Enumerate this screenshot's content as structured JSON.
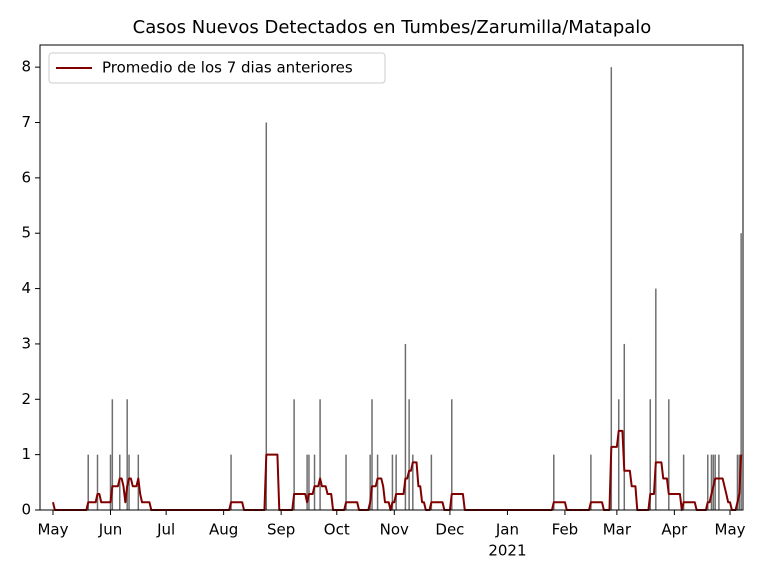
{
  "chart_data": {
    "type": "bar",
    "title": "Casos Nuevos Detectados en Tumbes/Zarumilla/Matapalo",
    "xlim": [
      -7,
      372
    ],
    "ylim": [
      0,
      8.4
    ],
    "yticks": [
      0,
      1,
      2,
      3,
      4,
      5,
      6,
      7,
      8
    ],
    "xticks": [
      {
        "value": 0,
        "label": "May"
      },
      {
        "value": 31,
        "label": "Jun"
      },
      {
        "value": 61,
        "label": "Jul"
      },
      {
        "value": 92,
        "label": "Aug"
      },
      {
        "value": 123,
        "label": "Sep"
      },
      {
        "value": 153,
        "label": "Oct"
      },
      {
        "value": 184,
        "label": "Nov"
      },
      {
        "value": 214,
        "label": "Dec"
      },
      {
        "value": 245,
        "label": "Jan"
      },
      {
        "value": 276,
        "label": "Feb"
      },
      {
        "value": 304,
        "label": "Mar"
      },
      {
        "value": 335,
        "label": "Apr"
      },
      {
        "value": 365,
        "label": "May"
      }
    ],
    "x_secondary_labels": [
      {
        "value": 245,
        "label": "2021"
      }
    ],
    "legend": "upper left",
    "series": [
      {
        "type": "bar",
        "color": "#6e6e6e",
        "x": [
          19,
          24,
          31,
          32,
          36,
          40,
          41,
          46,
          96,
          115,
          130,
          137,
          138,
          141,
          144,
          158,
          171,
          172,
          175,
          183,
          185,
          190,
          192,
          194,
          204,
          215,
          270,
          290,
          301,
          305,
          308,
          322,
          325,
          332,
          340,
          353,
          355,
          356,
          357,
          359,
          369,
          370,
          371
        ],
        "values": [
          1,
          1,
          1,
          2,
          1,
          2,
          1,
          1,
          1,
          7,
          2,
          1,
          1,
          1,
          2,
          1,
          1,
          2,
          1,
          1,
          1,
          3,
          2,
          1,
          1,
          2,
          1,
          1,
          8,
          2,
          3,
          2,
          4,
          2,
          1,
          1,
          1,
          1,
          1,
          1,
          1,
          1,
          5
        ]
      },
      {
        "type": "line",
        "name": "Promedio de los 7 dias anteriores",
        "color": "#800000",
        "x": [
          0,
          1,
          18,
          19,
          23,
          24,
          25,
          26,
          31,
          32,
          35,
          36,
          37,
          38,
          39,
          40,
          41,
          42,
          43,
          45,
          46,
          47,
          48,
          52,
          53,
          95,
          96,
          102,
          103,
          114,
          115,
          121,
          122,
          129,
          130,
          136,
          137,
          138,
          140,
          141,
          143,
          144,
          145,
          147,
          148,
          150,
          151,
          157,
          158,
          164,
          165,
          170,
          171,
          172,
          174,
          175,
          177,
          178,
          179,
          181,
          182,
          183,
          184,
          185,
          189,
          190,
          191,
          192,
          193,
          194,
          196,
          197,
          198,
          199,
          200,
          201,
          203,
          204,
          210,
          211,
          214,
          215,
          221,
          222,
          269,
          270,
          276,
          277,
          289,
          290,
          296,
          297,
          300,
          301,
          304,
          305,
          307,
          308,
          311,
          312,
          314,
          315,
          321,
          322,
          324,
          325,
          328,
          329,
          331,
          332,
          338,
          339,
          340,
          346,
          347,
          352,
          353,
          354,
          355,
          356,
          357,
          361,
          362,
          363,
          364,
          365,
          366,
          368,
          369,
          370,
          371
        ],
        "values": [
          0.14,
          0,
          0,
          0.14,
          0.14,
          0.29,
          0.29,
          0.14,
          0.14,
          0.43,
          0.43,
          0.57,
          0.57,
          0.43,
          0.14,
          0.43,
          0.57,
          0.57,
          0.43,
          0.43,
          0.57,
          0.29,
          0.14,
          0.14,
          0,
          0,
          0.14,
          0.14,
          0,
          0,
          1,
          1,
          0,
          0,
          0.29,
          0.29,
          0.14,
          0.29,
          0.29,
          0.43,
          0.43,
          0.57,
          0.43,
          0.43,
          0.29,
          0.29,
          0,
          0,
          0.14,
          0.14,
          0,
          0,
          0.14,
          0.43,
          0.43,
          0.57,
          0.57,
          0.43,
          0.14,
          0.14,
          0,
          0.14,
          0.14,
          0.29,
          0.29,
          0.57,
          0.57,
          0.71,
          0.71,
          0.86,
          0.86,
          0.43,
          0.43,
          0.14,
          0.14,
          0,
          0,
          0.14,
          0.14,
          0,
          0,
          0.29,
          0.29,
          0,
          0,
          0.14,
          0.14,
          0,
          0,
          0.14,
          0.14,
          0,
          0,
          1.14,
          1.14,
          1.43,
          1.43,
          0.71,
          0.71,
          0.43,
          0.43,
          0,
          0,
          0.29,
          0.29,
          0.86,
          0.86,
          0.57,
          0.57,
          0.29,
          0.29,
          0,
          0.14,
          0.14,
          0,
          0,
          0.14,
          0.14,
          0.29,
          0.43,
          0.57,
          0.57,
          0.43,
          0.29,
          0.14,
          0.14,
          0,
          0,
          0.14,
          0.29,
          1
        ]
      }
    ]
  }
}
